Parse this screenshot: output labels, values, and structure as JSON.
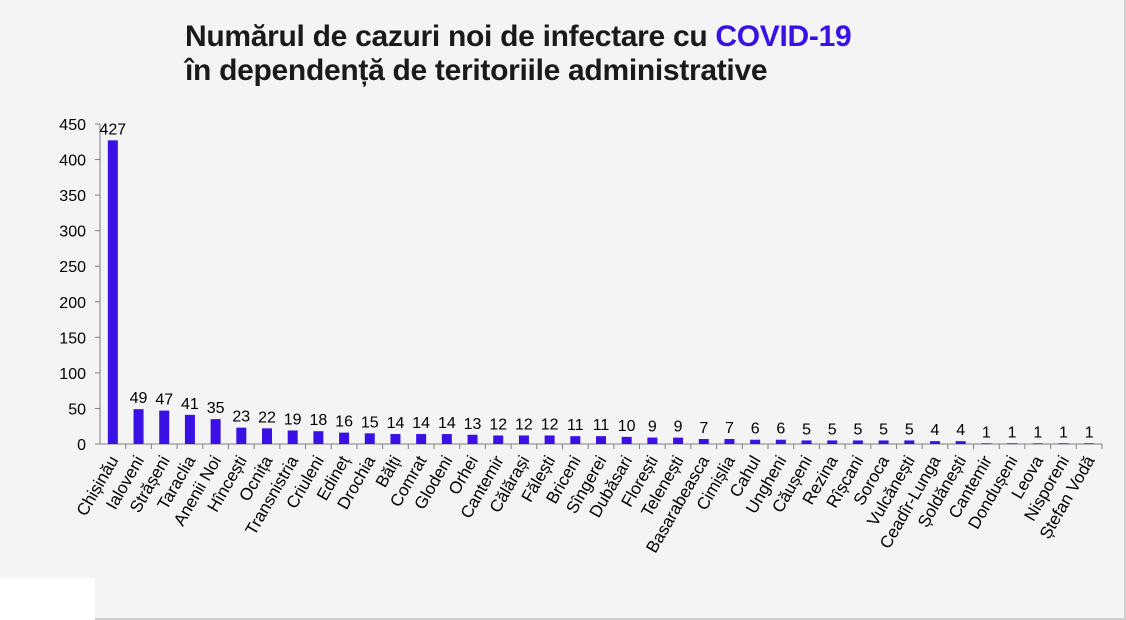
{
  "title": {
    "line1_prefix": "Numărul de cazuri noi de infectare cu ",
    "line1_accent": "COVID-19",
    "line2": "în dependență de teritoriile administrative"
  },
  "colors": {
    "bar": "#3a10e5",
    "accent": "#3a10e5"
  },
  "chart_data": {
    "type": "bar",
    "title": "Numărul de cazuri noi de infectare cu COVID-19 în dependență de teritoriile administrative",
    "xlabel": "",
    "ylabel": "",
    "ylim": [
      0,
      450
    ],
    "yticks": [
      0,
      50,
      100,
      150,
      200,
      250,
      300,
      350,
      400,
      450
    ],
    "grid": false,
    "categories": [
      "Chișinău",
      "Ialoveni",
      "Strășeni",
      "Taraclia",
      "Anenii Noi",
      "Hîncești",
      "Ocnița",
      "Transnistria",
      "Criuleni",
      "Edineț",
      "Drochia",
      "Bălți",
      "Comrat",
      "Glodeni",
      "Orhei",
      "Cantemir",
      "Călărași",
      "Fălești",
      "Briceni",
      "Sîngerei",
      "Dubăsari",
      "Florești",
      "Telenești",
      "Basarabeasca",
      "Cimișlia",
      "Cahul",
      "Ungheni",
      "Căușeni",
      "Rezina",
      "Rîșcani",
      "Soroca",
      "Vulcănești",
      "Ceadîr-Lunga",
      "Șoldănești",
      "Cantemir",
      "Dondușeni",
      "Leova",
      "Nisporeni",
      "Ștefan Vodă"
    ],
    "values": [
      427,
      49,
      47,
      41,
      35,
      23,
      22,
      19,
      18,
      16,
      15,
      14,
      14,
      14,
      13,
      12,
      12,
      12,
      11,
      11,
      10,
      9,
      9,
      7,
      7,
      6,
      6,
      5,
      5,
      5,
      5,
      5,
      4,
      4,
      1,
      1,
      1,
      1,
      1
    ]
  }
}
